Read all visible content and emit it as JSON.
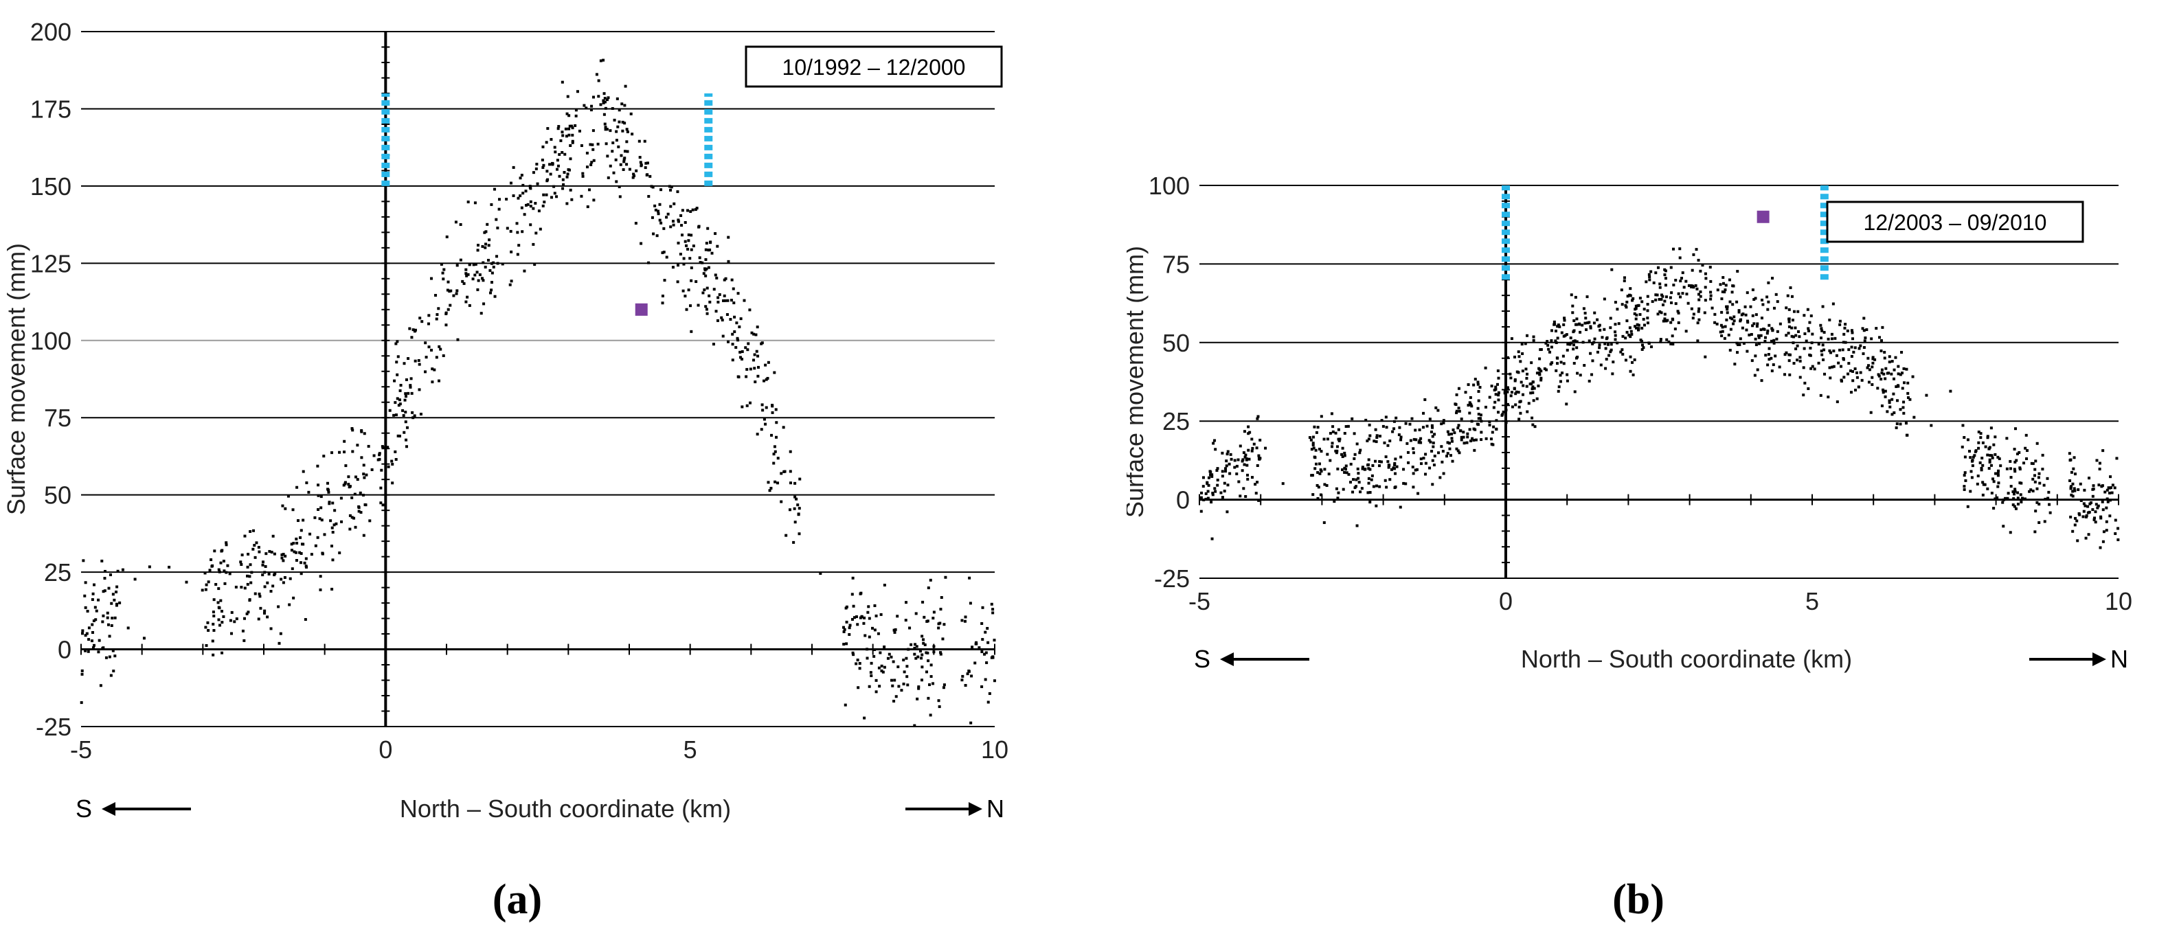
{
  "chart_data": [
    {
      "type": "scatter",
      "panel_caption": "(a)",
      "period_label": "10/1992 – 12/2000",
      "xlabel": "North – South coordinate  (km)",
      "ylabel": "Surface movement  (mm)",
      "xlim": [
        -5,
        10
      ],
      "ylim": [
        -25,
        200
      ],
      "x_ticks": [
        -5,
        0,
        5,
        10
      ],
      "y_ticks": [
        -25,
        0,
        25,
        50,
        75,
        100,
        125,
        150,
        175,
        200
      ],
      "grid": "horizontal",
      "direction_left": "S",
      "direction_right": "N",
      "vertical_markers": [
        {
          "x": 0,
          "y_range": [
            150,
            180
          ],
          "color": "#29B6E8"
        },
        {
          "x": 5.3,
          "y_range": [
            150,
            180
          ],
          "color": "#29B6E8"
        }
      ],
      "highlight_point": {
        "x": 4.2,
        "y": 110,
        "color": "#7B3F9E"
      },
      "point_color": "#000000",
      "series": [
        {
          "profile": [
            [
              -5.0,
              5
            ],
            [
              -4.5,
              10
            ],
            [
              -4.0,
              15
            ],
            [
              -3.0,
              15
            ],
            [
              -2.5,
              18
            ],
            [
              -2.0,
              20
            ],
            [
              -1.5,
              28
            ],
            [
              -1.0,
              42
            ],
            [
              -0.5,
              52
            ],
            [
              0.0,
              60
            ],
            [
              0.5,
              95
            ],
            [
              1.0,
              110
            ],
            [
              1.5,
              128
            ],
            [
              2.0,
              135
            ],
            [
              2.5,
              150
            ],
            [
              3.0,
              162
            ],
            [
              3.5,
              170
            ],
            [
              4.0,
              160
            ],
            [
              4.5,
              140
            ],
            [
              5.0,
              128
            ],
            [
              5.5,
              118
            ],
            [
              6.0,
              95
            ],
            [
              6.5,
              60
            ],
            [
              7.0,
              30
            ],
            [
              7.5,
              5
            ],
            [
              8.0,
              0
            ],
            [
              8.5,
              -2
            ],
            [
              9.0,
              0
            ],
            [
              10.0,
              0
            ]
          ],
          "x_gaps": [
            [
              -4.3,
              -3.0
            ],
            [
              6.8,
              7.5
            ],
            [
              9.2,
              9.5
            ]
          ],
          "spread": 10,
          "point_count": 1100
        }
      ]
    },
    {
      "type": "scatter",
      "panel_caption": "(b)",
      "period_label": "12/2003 – 09/2010",
      "xlabel": "North – South coordinate  (km)",
      "ylabel": "Surface movement  (mm)",
      "xlim": [
        -5,
        10
      ],
      "ylim": [
        -25,
        100
      ],
      "x_ticks": [
        -5,
        0,
        5,
        10
      ],
      "y_ticks": [
        -25,
        0,
        25,
        50,
        75,
        100
      ],
      "grid": "horizontal",
      "direction_left": "S",
      "direction_right": "N",
      "vertical_markers": [
        {
          "x": 0,
          "y_range": [
            70,
            100
          ],
          "color": "#29B6E8"
        },
        {
          "x": 5.2,
          "y_range": [
            70,
            100
          ],
          "color": "#29B6E8"
        }
      ],
      "highlight_point": {
        "x": 4.2,
        "y": 90,
        "color": "#7B3F9E"
      },
      "point_color": "#000000",
      "series": [
        {
          "profile": [
            [
              -5.0,
              2
            ],
            [
              -4.5,
              8
            ],
            [
              -4.2,
              12
            ],
            [
              -3.0,
              12
            ],
            [
              -2.5,
              10
            ],
            [
              -2.0,
              12
            ],
            [
              -1.5,
              16
            ],
            [
              -1.0,
              20
            ],
            [
              -0.5,
              27
            ],
            [
              0.0,
              35
            ],
            [
              0.5,
              40
            ],
            [
              1.0,
              48
            ],
            [
              1.5,
              52
            ],
            [
              2.0,
              56
            ],
            [
              2.5,
              63
            ],
            [
              3.0,
              65
            ],
            [
              3.5,
              62
            ],
            [
              4.0,
              55
            ],
            [
              4.5,
              52
            ],
            [
              5.0,
              50
            ],
            [
              5.5,
              47
            ],
            [
              6.0,
              43
            ],
            [
              6.5,
              35
            ],
            [
              7.5,
              15
            ],
            [
              8.0,
              10
            ],
            [
              8.5,
              5
            ],
            [
              9.0,
              2
            ],
            [
              10.0,
              0
            ]
          ],
          "x_gaps": [
            [
              -4.0,
              -3.2
            ],
            [
              6.6,
              7.4
            ],
            [
              8.9,
              9.2
            ]
          ],
          "spread": 7,
          "point_count": 1400
        }
      ]
    }
  ]
}
